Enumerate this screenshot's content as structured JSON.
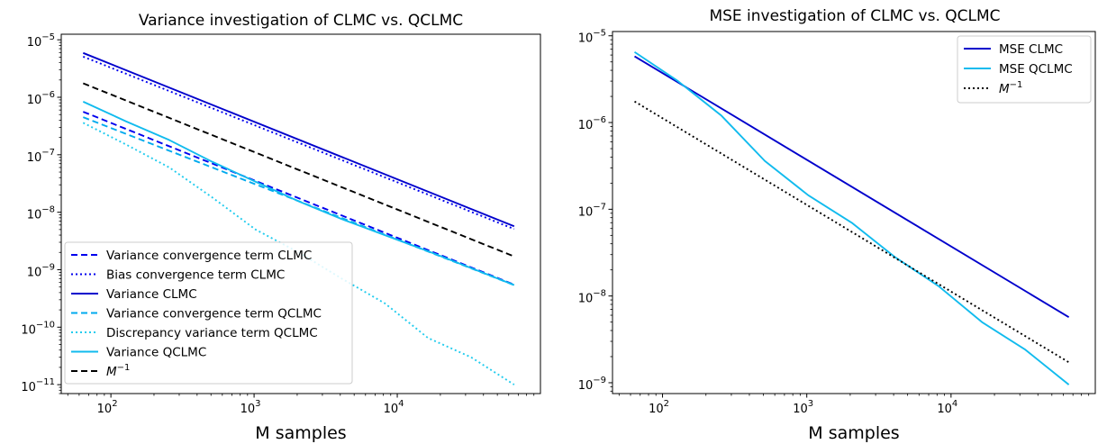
{
  "chart_data": [
    {
      "type": "line",
      "title": "Variance investigation of CLMC vs. QCLMC",
      "xlabel": "M samples",
      "ylabel": "",
      "xscale": "log",
      "yscale": "log",
      "xlim": [
        45,
        100000
      ],
      "ylim": [
        7e-12,
        1.25e-05
      ],
      "xticks": [
        {
          "value": 100,
          "base": "10",
          "exp": "2"
        },
        {
          "value": 1000,
          "base": "10",
          "exp": "3"
        },
        {
          "value": 10000,
          "base": "10",
          "exp": "4"
        }
      ],
      "yticks": [
        {
          "value": 1e-11,
          "base": "10",
          "exp": "−11"
        },
        {
          "value": 1e-10,
          "base": "10",
          "exp": "−10"
        },
        {
          "value": 1e-09,
          "base": "10",
          "exp": "−9"
        },
        {
          "value": 1e-08,
          "base": "10",
          "exp": "−8"
        },
        {
          "value": 1e-07,
          "base": "10",
          "exp": "−7"
        },
        {
          "value": 1e-06,
          "base": "10",
          "exp": "−6"
        },
        {
          "value": 1e-05,
          "base": "10",
          "exp": "−5"
        }
      ],
      "grid": false,
      "legend_position": "lower-left",
      "series": [
        {
          "name": "Variance convergence term CLMC",
          "color": "#0000ee",
          "dash": "dashed",
          "x": [
            64,
            65536
          ],
          "y": [
            5.6e-07,
            5.5e-10
          ]
        },
        {
          "name": "Bias convergence term CLMC",
          "color": "#0000ee",
          "dash": "dotted",
          "x": [
            64,
            65536
          ],
          "y": [
            5.1e-06,
            5.1e-09
          ]
        },
        {
          "name": "Variance CLMC",
          "color": "#0000cc",
          "dash": "solid",
          "x": [
            64,
            65536
          ],
          "y": [
            5.9e-06,
            5.7e-09
          ]
        },
        {
          "name": "Variance convergence term QCLMC",
          "color": "#00aaee",
          "dash": "dashed",
          "x": [
            64,
            65536
          ],
          "y": [
            4.5e-07,
            5.4e-10
          ]
        },
        {
          "name": "Discrepancy variance term QCLMC",
          "color": "#22ccee",
          "dash": "dotted",
          "x": [
            64,
            128,
            256,
            512,
            1024,
            2048,
            4096,
            8192,
            16384,
            32768,
            65536
          ],
          "y": [
            3.6e-07,
            1.5e-07,
            6e-08,
            1.8e-08,
            5e-09,
            2e-09,
            7e-10,
            2.6e-10,
            6.5e-11,
            3e-11,
            1e-11
          ]
        },
        {
          "name": "Variance  QCLMC",
          "color": "#11bbee",
          "dash": "solid",
          "x": [
            64,
            128,
            256,
            512,
            1024,
            2048,
            4096,
            8192,
            16384,
            32768,
            65536
          ],
          "y": [
            8.4e-07,
            3.8e-07,
            1.8e-07,
            7.5e-08,
            3.4e-08,
            1.55e-08,
            7.6e-09,
            4e-09,
            2.1e-09,
            1.07e-09,
            5.4e-10
          ]
        },
        {
          "name": "M",
          "name_sup": "−1",
          "color": "#000000",
          "dash": "dashed",
          "x": [
            64,
            65536
          ],
          "y": [
            1.75e-06,
            1.7e-09
          ]
        }
      ]
    },
    {
      "type": "line",
      "title": "MSE investigation of CLMC vs. QCLMC",
      "xlabel": "M samples",
      "ylabel": "",
      "xscale": "log",
      "yscale": "log",
      "xlim": [
        45,
        100000
      ],
      "ylim": [
        7.5e-10,
        1.12e-05
      ],
      "xticks": [
        {
          "value": 100,
          "base": "10",
          "exp": "2"
        },
        {
          "value": 1000,
          "base": "10",
          "exp": "3"
        },
        {
          "value": 10000,
          "base": "10",
          "exp": "4"
        }
      ],
      "yticks": [
        {
          "value": 1e-09,
          "base": "10",
          "exp": "−9"
        },
        {
          "value": 1e-08,
          "base": "10",
          "exp": "−8"
        },
        {
          "value": 1e-07,
          "base": "10",
          "exp": "−7"
        },
        {
          "value": 1e-06,
          "base": "10",
          "exp": "−6"
        },
        {
          "value": 1e-05,
          "base": "10",
          "exp": "−5"
        }
      ],
      "grid": false,
      "legend_position": "upper-right",
      "series": [
        {
          "name": "MSE CLMC",
          "color": "#0000cc",
          "dash": "solid",
          "x": [
            64,
            65536
          ],
          "y": [
            5.8e-06,
            5.7e-09
          ]
        },
        {
          "name": "MSE QCLMC",
          "color": "#11bbee",
          "dash": "solid",
          "x": [
            64,
            128,
            256,
            512,
            1024,
            2048,
            4096,
            8192,
            16384,
            32768,
            65536
          ],
          "y": [
            6.5e-06,
            3e-06,
            1.2e-06,
            3.6e-07,
            1.45e-07,
            7e-08,
            2.8e-08,
            1.3e-08,
            5e-09,
            2.4e-09,
            9.5e-10
          ]
        },
        {
          "name": "M",
          "name_sup": "−1",
          "color": "#000000",
          "dash": "dotted",
          "x": [
            64,
            65536
          ],
          "y": [
            1.75e-06,
            1.72e-09
          ]
        }
      ]
    }
  ]
}
